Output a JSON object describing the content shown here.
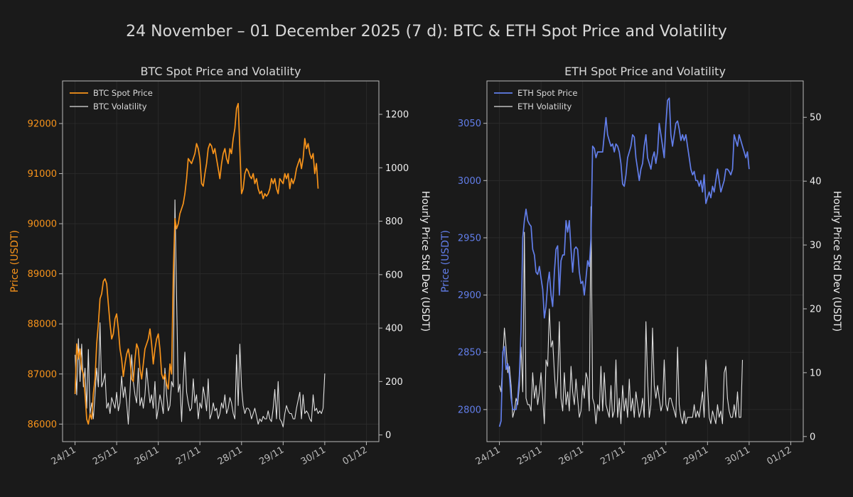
{
  "suptitle": "24 November – 01 December 2025 (7 d): BTC & ETH Spot Price and Volatility",
  "colors": {
    "background": "#1a1a1a",
    "grid": "#2c2c2c",
    "axis": "#bbbbbb",
    "tick_text": "#bbbbbb",
    "title_text": "#d8d8d8",
    "vol_line": "#e0e0e0",
    "btc": "#f7931a",
    "eth": "#627eea"
  },
  "chart_data": [
    {
      "type": "line",
      "title": "BTC Spot Price and Volatility",
      "xlabel": "",
      "ylabel": "Price (USDT)",
      "ylabel_right": "Hourly Price Std Dev (USDT)",
      "x_ticks": [
        "24/11",
        "25/11",
        "26/11",
        "27/11",
        "28/11",
        "29/11",
        "30/11",
        "01/12"
      ],
      "xlim": [
        -0.3,
        7.3
      ],
      "ylim": [
        85650,
        92850
      ],
      "yticks": [
        86000,
        87000,
        88000,
        89000,
        90000,
        91000,
        92000
      ],
      "ylim_right": [
        -25,
        1325
      ],
      "yticks_right": [
        0,
        200,
        400,
        600,
        800,
        1000,
        1200
      ],
      "legend": [
        "BTC Spot Price",
        "BTC Volatility"
      ],
      "legend_position": "top-left",
      "series": [
        {
          "name": "BTC Spot Price",
          "axis": "left",
          "color": "#f7931a",
          "x_step": 0.04,
          "values": [
            86600,
            87600,
            87300,
            87500,
            87100,
            87000,
            86600,
            86100,
            86000,
            86200,
            86100,
            86600,
            86900,
            87600,
            88000,
            88500,
            88600,
            88850,
            88900,
            88800,
            88400,
            88000,
            87700,
            87800,
            88100,
            88200,
            87900,
            87500,
            87300,
            86950,
            87200,
            87400,
            87500,
            87300,
            86900,
            86850,
            87300,
            87600,
            87500,
            87100,
            86900,
            87200,
            87500,
            87600,
            87700,
            87900,
            87600,
            87200,
            87500,
            87700,
            87800,
            87500,
            87000,
            86900,
            87000,
            86800,
            86700,
            87200,
            87000,
            89000,
            90100,
            89900,
            90000,
            90200,
            90300,
            90400,
            90600,
            90900,
            91300,
            91250,
            91200,
            91300,
            91400,
            91600,
            91500,
            91300,
            90800,
            90750,
            91000,
            91200,
            91500,
            91600,
            91550,
            91400,
            91500,
            91300,
            91100,
            90900,
            91200,
            91400,
            91500,
            91300,
            91200,
            91500,
            91400,
            91700,
            91900,
            92300,
            92400,
            91500,
            90600,
            90700,
            91000,
            91100,
            91050,
            90950,
            90900,
            91000,
            90800,
            90900,
            90700,
            90600,
            90650,
            90500,
            90600,
            90550,
            90600,
            90700,
            90900,
            90800,
            90900,
            90700,
            90600,
            90900,
            90850,
            90800,
            91000,
            90900,
            91000,
            90700,
            90900,
            90800,
            90900,
            91100,
            91200,
            91300,
            91100,
            91300,
            91700,
            91500,
            91600,
            91400,
            91300,
            91400,
            91000,
            91200,
            90700
          ]
        },
        {
          "name": "BTC Volatility",
          "axis": "right",
          "color": "#e0e0e0",
          "x_step": 0.04,
          "values": [
            300,
            150,
            360,
            200,
            340,
            180,
            250,
            100,
            320,
            80,
            120,
            60,
            150,
            250,
            180,
            420,
            180,
            200,
            230,
            100,
            120,
            80,
            140,
            120,
            100,
            160,
            90,
            120,
            220,
            140,
            180,
            120,
            40,
            160,
            300,
            200,
            150,
            120,
            250,
            110,
            140,
            100,
            150,
            250,
            180,
            120,
            150,
            100,
            200,
            60,
            100,
            150,
            120,
            80,
            250,
            150,
            90,
            110,
            200,
            180,
            880,
            520,
            160,
            190,
            50,
            200,
            310,
            160,
            120,
            90,
            100,
            210,
            120,
            150,
            60,
            120,
            100,
            180,
            140,
            90,
            210,
            60,
            80,
            120,
            90,
            100,
            60,
            80,
            120,
            100,
            150,
            80,
            100,
            140,
            120,
            80,
            60,
            300,
            110,
            340,
            180,
            110,
            80,
            100,
            100,
            90,
            60,
            80,
            100,
            70,
            40,
            60,
            50,
            70,
            60,
            60,
            90,
            60,
            50,
            100,
            170,
            60,
            200,
            60,
            50,
            30,
            80,
            110,
            90,
            80,
            80,
            60,
            60,
            100,
            130,
            160,
            60,
            150,
            80,
            90,
            80,
            60,
            50,
            150,
            90,
            100,
            80,
            90,
            80,
            100,
            230
          ]
        }
      ]
    },
    {
      "type": "line",
      "title": "ETH Spot Price and Volatility",
      "xlabel": "",
      "ylabel": "Price (USDT)",
      "ylabel_right": "Hourly Price Std Dev (USDT)",
      "x_ticks": [
        "24/11",
        "25/11",
        "26/11",
        "27/11",
        "28/11",
        "29/11",
        "30/11",
        "01/12"
      ],
      "xlim": [
        -0.3,
        7.3
      ],
      "ylim": [
        2772,
        3087
      ],
      "yticks": [
        2800,
        2850,
        2900,
        2950,
        3000,
        3050
      ],
      "ylim_right": [
        -0.8,
        55.7
      ],
      "yticks_right": [
        0,
        10,
        20,
        30,
        40,
        50
      ],
      "legend": [
        "ETH Spot Price",
        "ETH Volatility"
      ],
      "legend_position": "top-left",
      "series": [
        {
          "name": "ETH Spot Price",
          "axis": "left",
          "color": "#627eea",
          "x_step": 0.04,
          "values": [
            2785,
            2790,
            2850,
            2855,
            2835,
            2840,
            2830,
            2810,
            2800,
            2800,
            2800,
            2810,
            2830,
            2870,
            2950,
            2965,
            2975,
            2965,
            2962,
            2960,
            2940,
            2935,
            2920,
            2918,
            2925,
            2915,
            2905,
            2880,
            2890,
            2910,
            2920,
            2900,
            2890,
            2920,
            2940,
            2943,
            2900,
            2930,
            2935,
            2935,
            2965,
            2955,
            2965,
            2940,
            2920,
            2940,
            2942,
            2940,
            2920,
            2910,
            2912,
            2900,
            2915,
            2930,
            2925,
            2950,
            3030,
            3028,
            3020,
            3025,
            3025,
            3025,
            3025,
            3040,
            3055,
            3040,
            3035,
            3030,
            3032,
            3025,
            3032,
            3030,
            3025,
            3015,
            2997,
            2995,
            3005,
            3020,
            3025,
            3030,
            3040,
            3038,
            3020,
            3010,
            3000,
            3010,
            3015,
            3030,
            3040,
            3020,
            3015,
            3010,
            3020,
            3025,
            3015,
            3025,
            3050,
            3040,
            3030,
            3020,
            3050,
            3070,
            3072,
            3040,
            3030,
            3040,
            3050,
            3052,
            3045,
            3035,
            3040,
            3035,
            3040,
            3030,
            3020,
            3010,
            3005,
            3008,
            3000,
            3000,
            2995,
            3000,
            2990,
            3005,
            2980,
            2985,
            2990,
            2985,
            2995,
            2990,
            3000,
            3010,
            3000,
            2990,
            2995,
            3000,
            3010,
            3010,
            3008,
            3005,
            3010,
            3040,
            3035,
            3030,
            3040,
            3035,
            3030,
            3025,
            3020,
            3025,
            3010
          ]
        },
        {
          "name": "ETH Volatility",
          "axis": "right",
          "color": "#e0e0e0",
          "x_step": 0.04,
          "values": [
            8,
            7,
            12,
            17,
            14,
            10,
            11,
            8,
            3,
            4,
            6,
            5,
            8,
            14,
            7,
            32,
            6,
            5,
            5,
            4,
            10,
            6,
            8,
            5,
            7,
            10,
            6,
            2,
            12,
            11,
            20,
            14,
            15,
            10,
            6,
            9,
            18,
            6,
            4,
            10,
            5,
            7,
            4,
            11,
            7,
            5,
            9,
            6,
            3,
            4,
            8,
            6,
            10,
            9,
            4,
            36,
            6,
            5,
            2,
            5,
            4,
            11,
            4,
            10,
            5,
            4,
            3,
            8,
            3,
            4,
            12,
            3,
            6,
            2,
            8,
            4,
            6,
            3,
            9,
            4,
            6,
            3,
            7,
            5,
            3,
            4,
            6,
            3,
            18,
            9,
            3,
            5,
            17,
            8,
            6,
            8,
            6,
            4,
            5,
            12,
            5,
            4,
            6,
            6,
            5,
            4,
            3,
            14,
            5,
            3,
            2,
            4,
            2,
            3,
            3,
            3,
            3,
            5,
            3,
            4,
            3,
            5,
            7,
            3,
            12,
            8,
            3,
            2,
            4,
            3,
            2,
            5,
            3,
            4,
            2,
            10,
            11,
            6,
            4,
            3,
            3,
            5,
            3,
            7,
            3,
            3,
            12
          ]
        }
      ]
    }
  ]
}
